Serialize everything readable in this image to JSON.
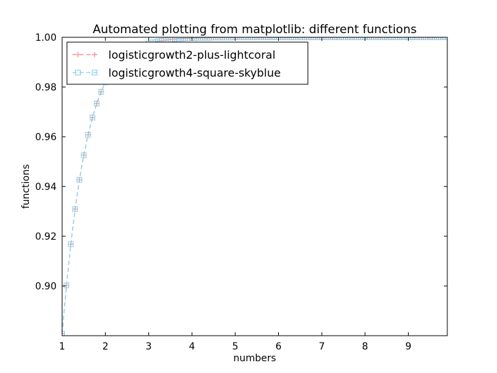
{
  "chart_data": {
    "type": "line",
    "title": "Automated plotting from matplotlib: different functions",
    "xlabel": "numbers",
    "ylabel": "functions",
    "xlim": [
      1,
      9.9
    ],
    "ylim": [
      0.88,
      1.0
    ],
    "xticks": [
      1,
      2,
      3,
      4,
      5,
      6,
      7,
      8,
      9
    ],
    "yticks": [
      0.9,
      0.92,
      0.94,
      0.96,
      0.98,
      1.0
    ],
    "ytick_labels": [
      "0.90",
      "0.92",
      "0.94",
      "0.96",
      "0.98",
      "1.00"
    ],
    "grid": false,
    "legend_position": "top-left",
    "x": [
      1.0,
      1.1,
      1.2,
      1.3,
      1.4,
      1.5,
      1.6,
      1.7,
      1.8,
      1.9,
      2.0,
      2.1,
      2.2,
      2.3,
      2.4,
      2.5,
      2.6,
      2.7,
      2.8,
      2.9,
      3.0,
      3.1,
      3.2,
      3.3,
      3.4,
      3.5,
      3.6,
      3.7,
      3.8,
      3.9,
      4.0,
      4.1,
      4.2,
      4.3,
      4.4,
      4.5,
      4.6,
      4.7,
      4.8,
      4.9,
      5.0,
      5.1,
      5.2,
      5.3,
      5.4,
      5.5,
      5.6,
      5.7,
      5.8,
      5.9,
      6.0,
      6.1,
      6.2,
      6.3,
      6.4,
      6.5,
      6.6,
      6.7,
      6.8,
      6.9,
      7.0,
      7.1,
      7.2,
      7.3,
      7.4,
      7.5,
      7.6,
      7.7,
      7.8,
      7.9,
      8.0,
      8.1,
      8.2,
      8.3,
      8.4,
      8.5,
      8.6,
      8.7,
      8.8,
      8.9,
      9.0,
      9.1,
      9.2,
      9.3,
      9.4,
      9.5,
      9.6,
      9.7,
      9.8,
      9.9
    ],
    "series": [
      {
        "name": "logisticgrowth2-plus-lightcoral",
        "color": "#f08080",
        "marker": "plus",
        "linestyle": "dashed",
        "values": [
          0.8808,
          0.9002,
          0.9168,
          0.9309,
          0.9427,
          0.9526,
          0.9608,
          0.9677,
          0.9734,
          0.9781,
          0.982,
          0.9852,
          0.9879,
          0.99,
          0.9918,
          0.9933,
          0.9945,
          0.9955,
          0.9963,
          0.997,
          0.9975,
          0.998,
          0.9983,
          0.9986,
          0.9989,
          0.9991,
          0.9993,
          0.9994,
          0.9995,
          0.9996,
          0.9997,
          0.9997,
          0.9998,
          0.9998,
          0.9998,
          0.9999,
          0.9999,
          0.9999,
          0.9999,
          0.9999,
          1.0,
          1.0,
          1.0,
          1.0,
          1.0,
          1.0,
          1.0,
          1.0,
          1.0,
          1.0,
          1.0,
          1.0,
          1.0,
          1.0,
          1.0,
          1.0,
          1.0,
          1.0,
          1.0,
          1.0,
          1.0,
          1.0,
          1.0,
          1.0,
          1.0,
          1.0,
          1.0,
          1.0,
          1.0,
          1.0,
          1.0,
          1.0,
          1.0,
          1.0,
          1.0,
          1.0,
          1.0,
          1.0,
          1.0,
          1.0,
          1.0,
          1.0,
          1.0,
          1.0,
          1.0,
          1.0,
          1.0,
          1.0,
          1.0,
          1.0
        ]
      },
      {
        "name": "logisticgrowth4-square-skyblue",
        "color": "#87ceeb",
        "marker": "square",
        "linestyle": "dashed",
        "values": [
          0.8808,
          0.9002,
          0.9168,
          0.9309,
          0.9427,
          0.9526,
          0.9608,
          0.9677,
          0.9734,
          0.9781,
          0.982,
          0.9852,
          0.9879,
          0.99,
          0.9918,
          0.9933,
          0.9945,
          0.9955,
          0.9963,
          0.997,
          0.9975,
          0.998,
          0.9983,
          0.9986,
          0.9989,
          0.9991,
          0.9993,
          0.9994,
          0.9995,
          0.9996,
          0.9997,
          0.9997,
          0.9998,
          0.9998,
          0.9998,
          0.9999,
          0.9999,
          0.9999,
          0.9999,
          0.9999,
          1.0,
          1.0,
          1.0,
          1.0,
          1.0,
          1.0,
          1.0,
          1.0,
          1.0,
          1.0,
          1.0,
          1.0,
          1.0,
          1.0,
          1.0,
          1.0,
          1.0,
          1.0,
          1.0,
          1.0,
          1.0,
          1.0,
          1.0,
          1.0,
          1.0,
          1.0,
          1.0,
          1.0,
          1.0,
          1.0,
          1.0,
          1.0,
          1.0,
          1.0,
          1.0,
          1.0,
          1.0,
          1.0,
          1.0,
          1.0,
          1.0,
          1.0,
          1.0,
          1.0,
          1.0,
          1.0,
          1.0,
          1.0,
          1.0,
          1.0
        ]
      }
    ]
  }
}
